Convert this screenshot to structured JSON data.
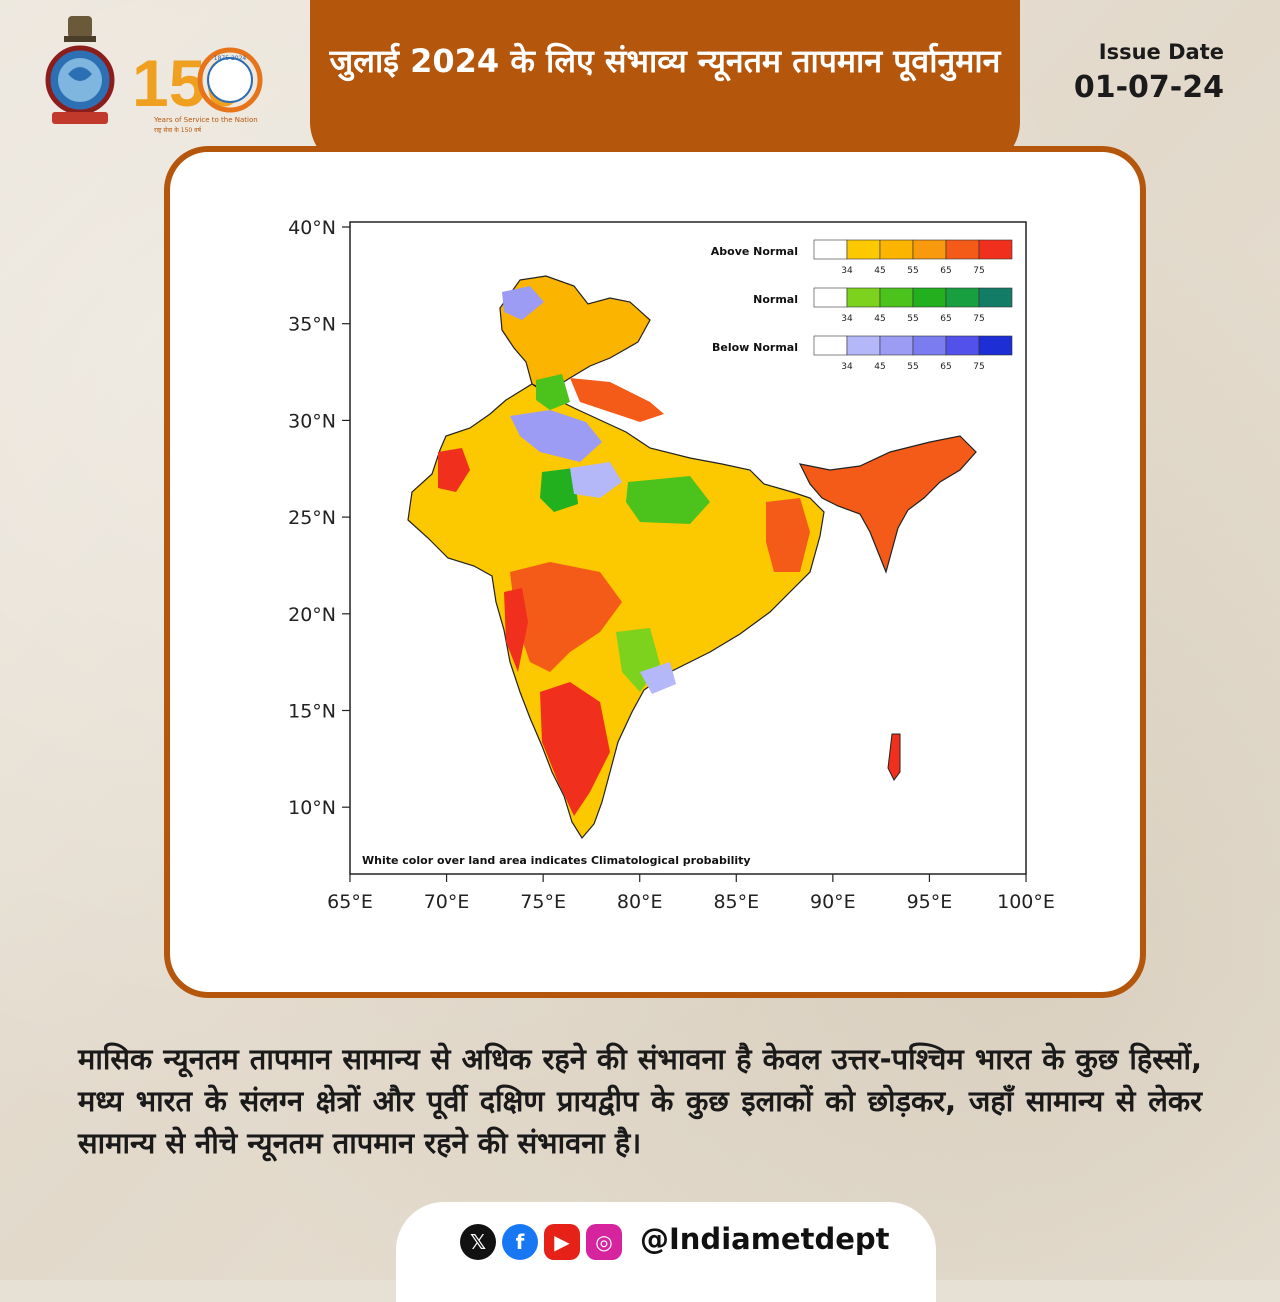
{
  "header": {
    "title": "जुलाई 2024 के लिए संभाव्य न्यूनतम तापमान पूर्वानुमान",
    "issue_label": "Issue Date",
    "issue_date": "01-07-24",
    "anniversary": {
      "number": "150",
      "years": "1875 2024",
      "tagline": "Years of Service to the Nation",
      "tagline_hi": "राष्ट्र सेवा के 150 वर्ष"
    }
  },
  "map": {
    "lat_labels": [
      "40°N",
      "35°N",
      "30°N",
      "25°N",
      "20°N",
      "15°N",
      "10°N"
    ],
    "lon_labels": [
      "65°E",
      "70°E",
      "75°E",
      "80°E",
      "85°E",
      "90°E",
      "95°E",
      "100°E"
    ],
    "note": "White color over land area indicates Climatological probability",
    "legend": [
      {
        "name": "Above Normal",
        "ticks": [
          "34",
          "45",
          "55",
          "65",
          "75"
        ],
        "colors": [
          "#ffffff",
          "#fcc800",
          "#fbb400",
          "#f99a0e",
          "#f45a18",
          "#f0301c"
        ]
      },
      {
        "name": "Normal",
        "ticks": [
          "34",
          "45",
          "55",
          "65",
          "75"
        ],
        "colors": [
          "#ffffff",
          "#7cd21c",
          "#4cc21c",
          "#22b01e",
          "#18a040",
          "#127c66"
        ]
      },
      {
        "name": "Below Normal",
        "ticks": [
          "34",
          "45",
          "55",
          "65",
          "75"
        ],
        "colors": [
          "#ffffff",
          "#b4b8f8",
          "#9c9cf4",
          "#7a7cf0",
          "#5252ea",
          "#1c2ed4"
        ]
      }
    ]
  },
  "description": "मासिक न्यूनतम तापमान सामान्य से अधिक रहने की संभावना है केवल उत्तर-पश्चिम भारत के कुछ हिस्सों, मध्य भारत के संलग्न क्षेत्रों और पूर्वी दक्षिण प्रायद्वीप के कुछ इलाकों को छोड़कर, जहाँ सामान्य से लेकर सामान्य से नीचे न्यूनतम तापमान रहने की संभावना है।",
  "social": {
    "icons": [
      "x-icon",
      "facebook-icon",
      "youtube-icon",
      "instagram-icon"
    ],
    "handle": "@Indiametdept"
  }
}
